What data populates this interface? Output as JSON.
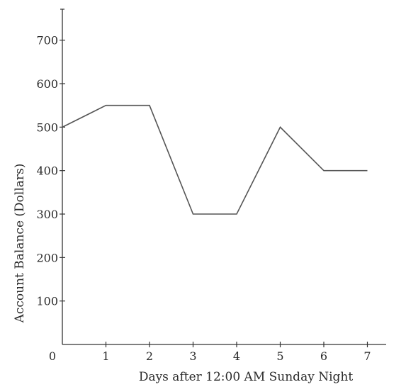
{
  "chart_data": {
    "type": "line",
    "xlabel": "Days after 12:00 AM Sunday Night",
    "ylabel": "Account Balance (Dollars)",
    "origin_label": "0",
    "x_ticks": [
      "1",
      "2",
      "3",
      "4",
      "5",
      "6",
      "7"
    ],
    "y_ticks": [
      "100",
      "200",
      "300",
      "400",
      "500",
      "600",
      "700"
    ],
    "xlim": [
      0,
      7.7
    ],
    "ylim": [
      0,
      770
    ],
    "grid": false,
    "series": [
      {
        "x": [
          0,
          1,
          2,
          3,
          4,
          5,
          6,
          7
        ],
        "values": [
          500,
          550,
          550,
          300,
          300,
          500,
          400,
          400
        ]
      }
    ]
  }
}
